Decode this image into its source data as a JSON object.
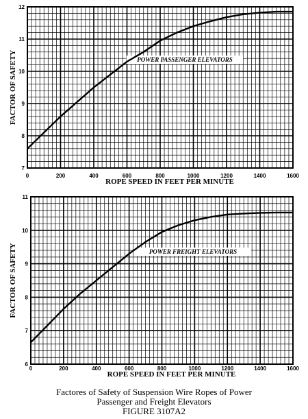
{
  "chart_data": [
    {
      "type": "line",
      "curve_label": "POWER PASSENGER ELEVATORS",
      "xlabel": "ROPE SPEED IN FEET PER MINUTE",
      "ylabel": "FACTOR OF SAFETY",
      "xlim": [
        0,
        1600
      ],
      "ylim": [
        7,
        12
      ],
      "x_ticks": [
        "0",
        "200",
        "400",
        "600",
        "800",
        "1000",
        "1200",
        "1400",
        "1600"
      ],
      "y_ticks": [
        "7",
        "8",
        "9",
        "10",
        "11",
        "12"
      ],
      "grid": true,
      "series": [
        {
          "x": [
            0,
            50,
            100,
            150,
            200,
            300,
            400,
            500,
            600,
            700,
            800,
            900,
            1000,
            1100,
            1200,
            1300,
            1400,
            1500,
            1600
          ],
          "y": [
            7.6,
            7.85,
            8.1,
            8.35,
            8.6,
            9.05,
            9.5,
            9.9,
            10.3,
            10.6,
            10.95,
            11.2,
            11.4,
            11.55,
            11.68,
            11.77,
            11.82,
            11.85,
            11.85
          ]
        }
      ]
    },
    {
      "type": "line",
      "curve_label": "POWER FREIGHT ELEVATORS",
      "xlabel": "ROPE SPEED IN FEET PER MINUTE",
      "ylabel": "FACTOR OF SAFETY",
      "xlim": [
        0,
        1600
      ],
      "ylim": [
        6,
        11
      ],
      "x_ticks": [
        "0",
        "200",
        "400",
        "600",
        "800",
        "1000",
        "1200",
        "1400",
        "1600"
      ],
      "y_ticks": [
        "6",
        "7",
        "8",
        "9",
        "10",
        "11"
      ],
      "grid": true,
      "series": [
        {
          "x": [
            0,
            50,
            100,
            150,
            200,
            300,
            400,
            500,
            600,
            700,
            800,
            900,
            1000,
            1100,
            1200,
            1300,
            1400,
            1500,
            1600
          ],
          "y": [
            6.65,
            6.9,
            7.15,
            7.4,
            7.65,
            8.1,
            8.5,
            8.9,
            9.3,
            9.65,
            9.95,
            10.15,
            10.3,
            10.4,
            10.47,
            10.5,
            10.52,
            10.53,
            10.53
          ]
        }
      ]
    }
  ],
  "caption": {
    "line1": "Factores of Safety of Suspension Wire Ropes of Power",
    "line2": "Passenger and Freight Elevators",
    "line3": "FIGURE 3107A2"
  }
}
